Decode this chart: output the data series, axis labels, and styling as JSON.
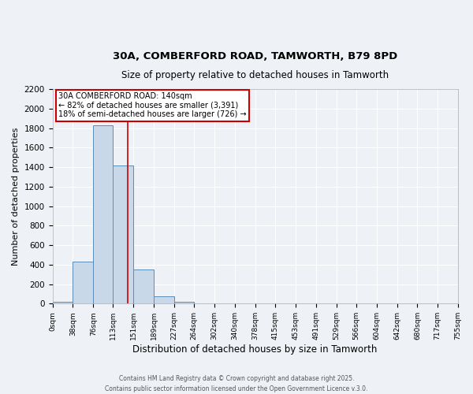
{
  "title_line1": "30A, COMBERFORD ROAD, TAMWORTH, B79 8PD",
  "title_line2": "Size of property relative to detached houses in Tamworth",
  "xlabel": "Distribution of detached houses by size in Tamworth",
  "ylabel": "Number of detached properties",
  "bar_edges": [
    0,
    38,
    76,
    113,
    151,
    189,
    227,
    264,
    302,
    340,
    378,
    415,
    453,
    491,
    529,
    566,
    604,
    642,
    680,
    717,
    755
  ],
  "bar_heights": [
    15,
    430,
    1830,
    1420,
    350,
    75,
    20,
    5,
    2,
    1,
    0,
    0,
    0,
    0,
    0,
    0,
    0,
    0,
    0,
    0
  ],
  "bar_color": "#c8d8e8",
  "bar_edgecolor": "#5b8db8",
  "vline_x": 140,
  "vline_color": "#cc0000",
  "annotation_line1": "30A COMBERFORD ROAD: 140sqm",
  "annotation_line2": "← 82% of detached houses are smaller (3,391)",
  "annotation_line3": "18% of semi-detached houses are larger (726) →",
  "ylim": [
    0,
    2200
  ],
  "yticks": [
    0,
    200,
    400,
    600,
    800,
    1000,
    1200,
    1400,
    1600,
    1800,
    2000,
    2200
  ],
  "xtick_labels": [
    "0sqm",
    "38sqm",
    "76sqm",
    "113sqm",
    "151sqm",
    "189sqm",
    "227sqm",
    "264sqm",
    "302sqm",
    "340sqm",
    "378sqm",
    "415sqm",
    "453sqm",
    "491sqm",
    "529sqm",
    "566sqm",
    "604sqm",
    "642sqm",
    "680sqm",
    "717sqm",
    "755sqm"
  ],
  "background_color": "#eef2f7",
  "grid_color": "#ffffff",
  "footer_line1": "Contains HM Land Registry data © Crown copyright and database right 2025.",
  "footer_line2": "Contains public sector information licensed under the Open Government Licence v.3.0."
}
